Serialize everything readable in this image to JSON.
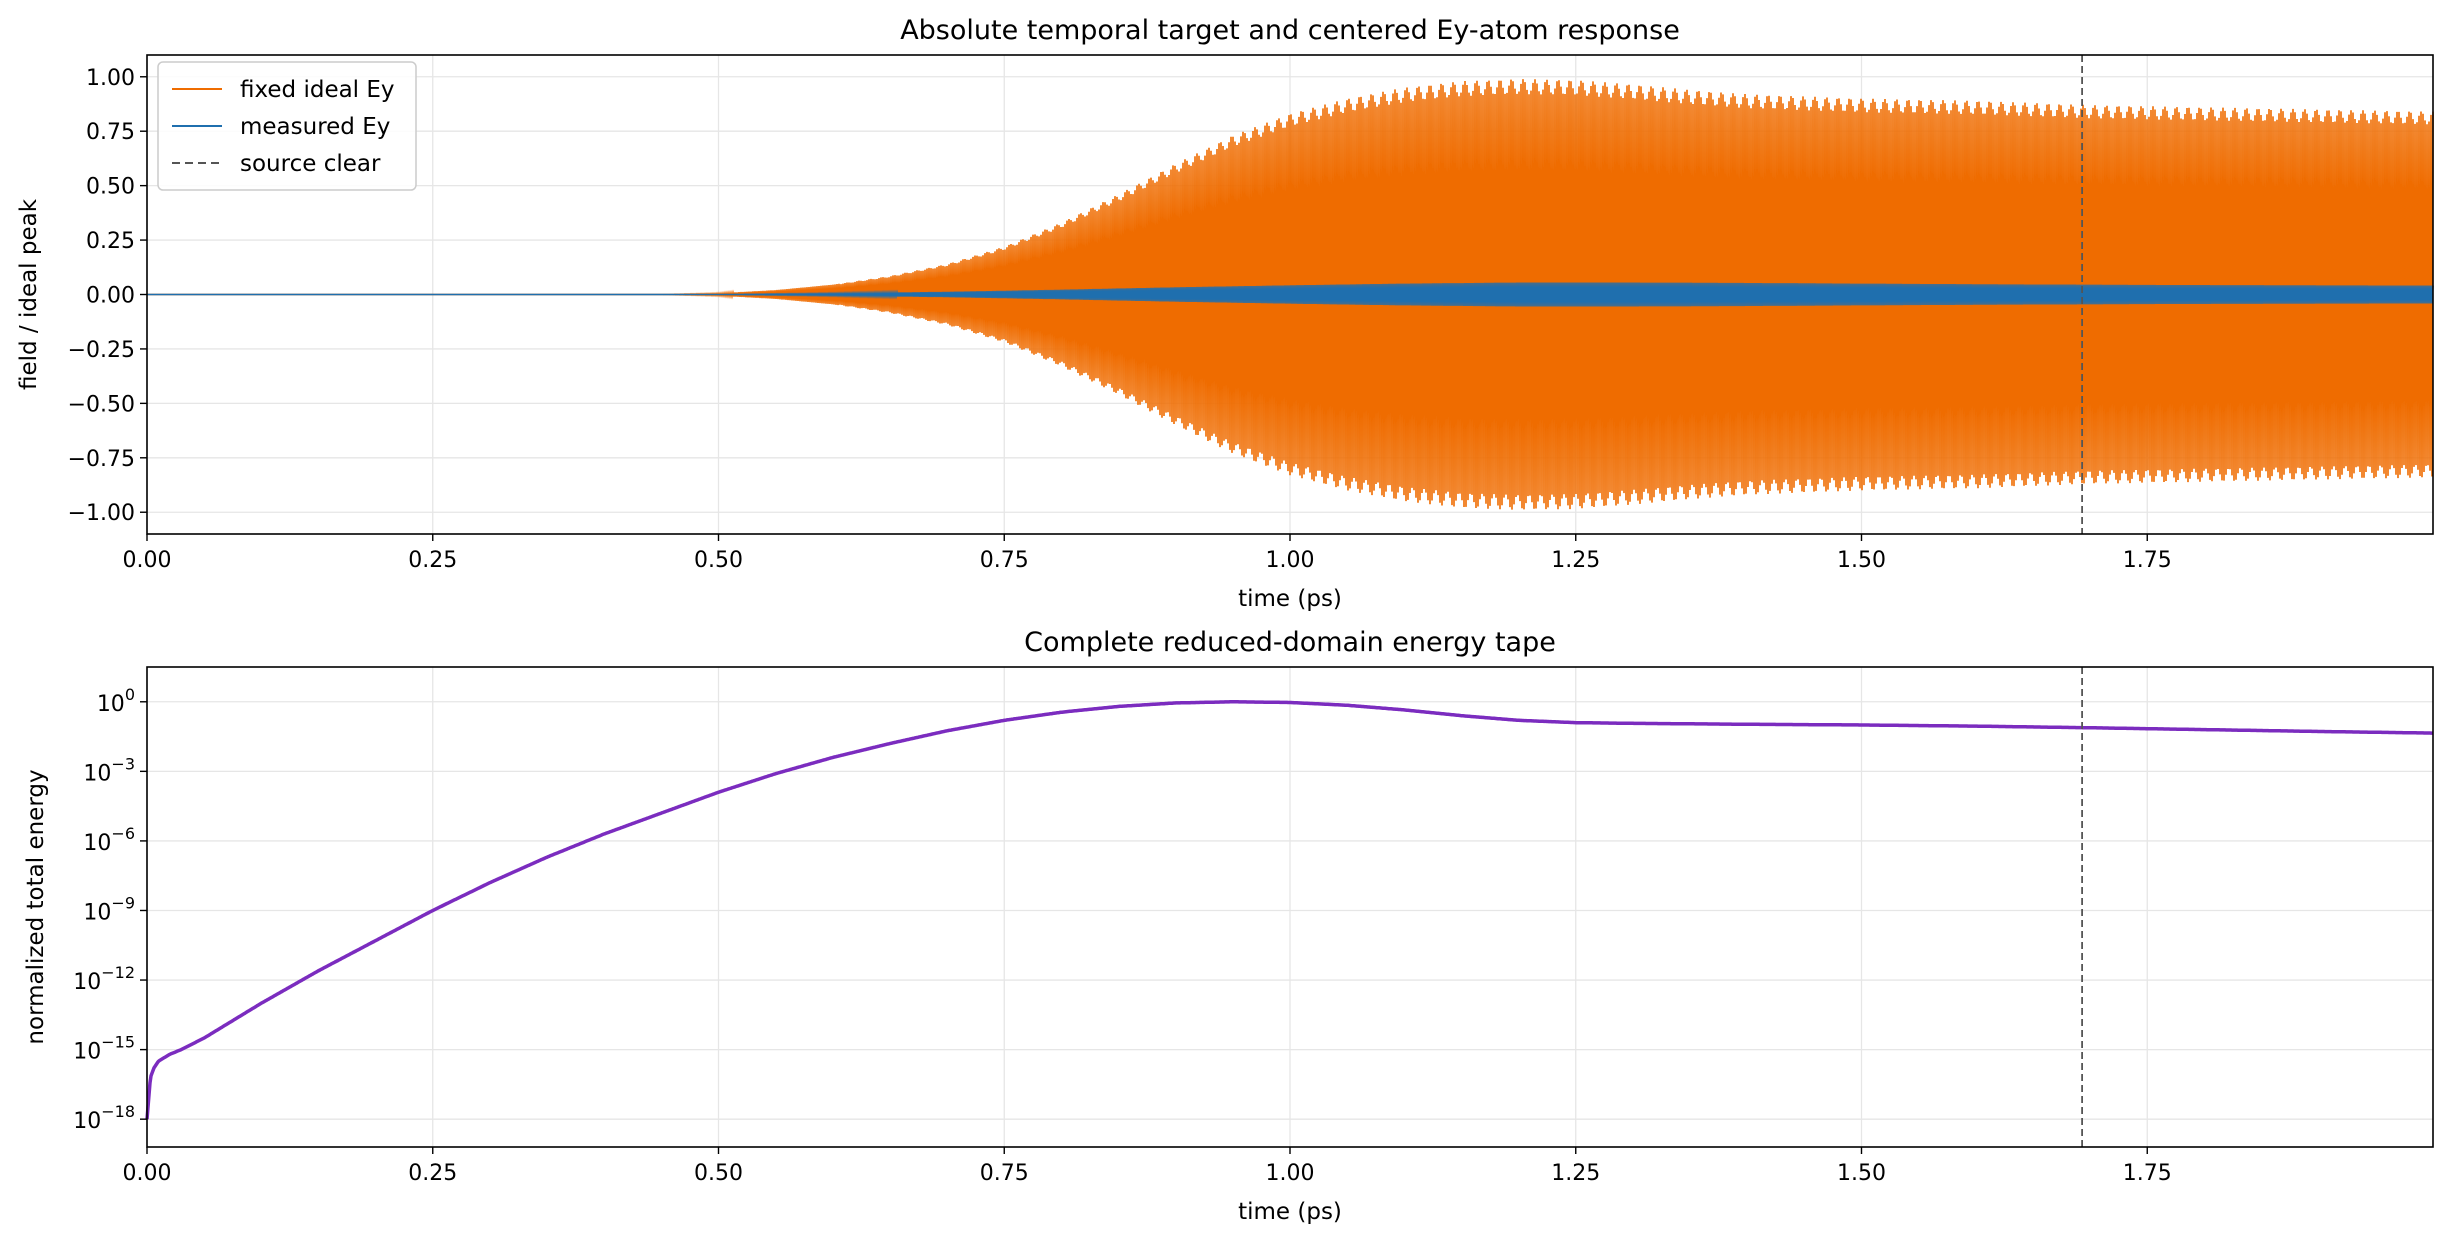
{
  "chart_data": [
    {
      "type": "line",
      "title": "Absolute temporal target and centered Ey-atom response",
      "xlabel": "time (ps)",
      "ylabel": "field / ideal peak",
      "xlim": [
        0.0,
        2.0
      ],
      "ylim": [
        -1.1,
        1.1
      ],
      "x_ticks": [
        "0.00",
        "0.25",
        "0.50",
        "0.75",
        "1.00",
        "1.25",
        "1.50",
        "1.75"
      ],
      "x_tick_values": [
        0.0,
        0.25,
        0.5,
        0.75,
        1.0,
        1.25,
        1.5,
        1.75
      ],
      "y_ticks": [
        "1.00",
        "0.75",
        "0.50",
        "0.25",
        "0.00",
        "−0.25",
        "−0.50",
        "−0.75",
        "−1.00"
      ],
      "y_tick_values": [
        1.0,
        0.75,
        0.5,
        0.25,
        0.0,
        -0.25,
        -0.5,
        -0.75,
        -1.0
      ],
      "grid": true,
      "legend_position": "upper-left",
      "series": [
        {
          "name": "fixed ideal Ey",
          "color": "#ef6c00",
          "style": "oscillating envelope",
          "envelope_x": [
            0.0,
            0.45,
            0.5,
            0.55,
            0.6,
            0.65,
            0.7,
            0.75,
            0.8,
            0.85,
            0.9,
            0.95,
            1.0,
            1.05,
            1.1,
            1.15,
            1.2,
            1.25,
            1.3,
            1.35,
            1.4,
            1.5,
            1.6,
            1.7,
            1.8,
            1.9,
            2.0
          ],
          "envelope_amplitude": [
            0.0,
            0.0,
            0.005,
            0.02,
            0.045,
            0.085,
            0.14,
            0.22,
            0.33,
            0.46,
            0.6,
            0.73,
            0.83,
            0.9,
            0.95,
            0.98,
            0.99,
            0.985,
            0.965,
            0.94,
            0.92,
            0.9,
            0.89,
            0.87,
            0.86,
            0.85,
            0.84
          ]
        },
        {
          "name": "measured Ey",
          "color": "#1f6fae",
          "style": "oscillating envelope",
          "envelope_x": [
            0.0,
            0.5,
            0.6,
            0.7,
            0.8,
            0.9,
            1.0,
            1.1,
            1.2,
            1.3,
            1.4,
            1.5,
            1.6,
            1.7,
            1.8,
            1.9,
            2.0
          ],
          "envelope_amplitude": [
            0.0,
            0.0,
            0.005,
            0.012,
            0.022,
            0.033,
            0.042,
            0.05,
            0.055,
            0.055,
            0.053,
            0.05,
            0.047,
            0.045,
            0.043,
            0.042,
            0.041
          ]
        },
        {
          "name": "source clear",
          "color": "#555555",
          "style": "vertical dashed line",
          "x": 1.693
        }
      ]
    },
    {
      "type": "line",
      "title": "Complete reduced-domain energy tape",
      "xlabel": "time (ps)",
      "ylabel": "normalized total energy",
      "yscale": "log",
      "xlim": [
        0.0,
        2.0
      ],
      "ylim_log10": [
        -19.2,
        1.5
      ],
      "x_ticks": [
        "0.00",
        "0.25",
        "0.50",
        "0.75",
        "1.00",
        "1.25",
        "1.50",
        "1.75"
      ],
      "x_tick_values": [
        0.0,
        0.25,
        0.5,
        0.75,
        1.0,
        1.25,
        1.5,
        1.75
      ],
      "y_tick_exponents": [
        "0",
        "−3",
        "−6",
        "−9",
        "−12",
        "−15",
        "−18"
      ],
      "y_tick_values_log10": [
        0,
        -3,
        -6,
        -9,
        -12,
        -15,
        -18
      ],
      "grid": true,
      "series": [
        {
          "name": "",
          "color": "#7b2cbf",
          "x": [
            0.0,
            0.003,
            0.006,
            0.01,
            0.02,
            0.03,
            0.05,
            0.1,
            0.15,
            0.2,
            0.25,
            0.3,
            0.35,
            0.4,
            0.45,
            0.5,
            0.55,
            0.6,
            0.65,
            0.7,
            0.75,
            0.8,
            0.85,
            0.9,
            0.95,
            1.0,
            1.05,
            1.1,
            1.15,
            1.2,
            1.25,
            1.3,
            1.4,
            1.5,
            1.6,
            1.7,
            1.8,
            1.9,
            2.0
          ],
          "y_log10": [
            -18.0,
            -16.2,
            -15.8,
            -15.5,
            -15.2,
            -15.0,
            -14.5,
            -13.0,
            -11.6,
            -10.3,
            -9.0,
            -7.8,
            -6.7,
            -5.7,
            -4.8,
            -3.9,
            -3.1,
            -2.4,
            -1.8,
            -1.25,
            -0.8,
            -0.45,
            -0.2,
            -0.05,
            0.0,
            -0.03,
            -0.15,
            -0.35,
            -0.6,
            -0.8,
            -0.9,
            -0.93,
            -0.97,
            -1.0,
            -1.05,
            -1.12,
            -1.2,
            -1.28,
            -1.35
          ]
        },
        {
          "name": "",
          "color": "#555555",
          "style": "vertical dashed line",
          "x": 1.693
        }
      ]
    }
  ]
}
